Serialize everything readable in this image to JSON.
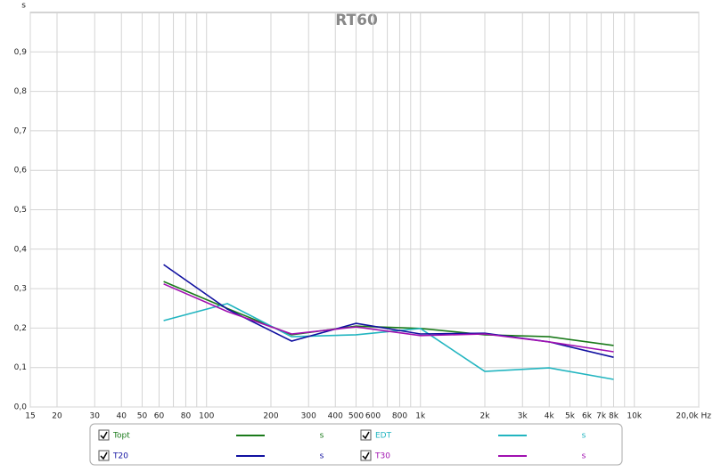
{
  "chart_data": {
    "type": "line",
    "title": "RT60",
    "y_unit": "s",
    "xlog": true,
    "grid": true,
    "xlim": [
      15,
      20000
    ],
    "ylim": [
      0,
      1
    ],
    "xticks": [
      15,
      20,
      30,
      40,
      50,
      60,
      80,
      100,
      200,
      300,
      400,
      500,
      600,
      800,
      {
        "value": 1000,
        "label": "1k"
      },
      {
        "value": 2000,
        "label": "2k"
      },
      {
        "value": 3000,
        "label": "3k"
      },
      {
        "value": 4000,
        "label": "4k"
      },
      {
        "value": 5000,
        "label": "5k"
      },
      {
        "value": 6000,
        "label": "6k"
      },
      {
        "value": 7000,
        "label": "7k"
      },
      {
        "value": 8000,
        "label": "8k"
      },
      {
        "value": 10000,
        "label": "10k"
      },
      {
        "value": 20000,
        "label": "20,0k Hz"
      }
    ],
    "xminor": [
      70,
      90,
      700,
      900,
      9000
    ],
    "yticks": [
      {
        "value": 0,
        "label": "0,0"
      },
      {
        "value": 0.1,
        "label": "0,1"
      },
      {
        "value": 0.2,
        "label": "0,2"
      },
      {
        "value": 0.3,
        "label": "0,3"
      },
      {
        "value": 0.4,
        "label": "0,4"
      },
      {
        "value": 0.5,
        "label": "0,5"
      },
      {
        "value": 0.6,
        "label": "0,6"
      },
      {
        "value": 0.7,
        "label": "0,7"
      },
      {
        "value": 0.8,
        "label": "0,8"
      },
      {
        "value": 0.9,
        "label": "0,9"
      }
    ],
    "x": [
      63,
      125,
      250,
      500,
      1000,
      2000,
      4000,
      8000
    ],
    "series": [
      {
        "name": "Topt",
        "unit": "s",
        "color": "#1a7a1a",
        "values": [
          0.318,
          0.25,
          0.183,
          0.205,
          0.199,
          0.183,
          0.178,
          0.156
        ]
      },
      {
        "name": "EDT",
        "unit": "s",
        "color": "#22b5c0",
        "values": [
          0.219,
          0.262,
          0.178,
          0.183,
          0.199,
          0.09,
          0.099,
          0.07
        ]
      },
      {
        "name": "T20",
        "unit": "s",
        "color": "#1010a0",
        "values": [
          0.361,
          0.248,
          0.167,
          0.212,
          0.185,
          0.187,
          0.165,
          0.126
        ]
      },
      {
        "name": "T30",
        "unit": "s",
        "color": "#a010b0",
        "values": [
          0.312,
          0.242,
          0.185,
          0.203,
          0.181,
          0.185,
          0.165,
          0.14
        ]
      }
    ]
  }
}
